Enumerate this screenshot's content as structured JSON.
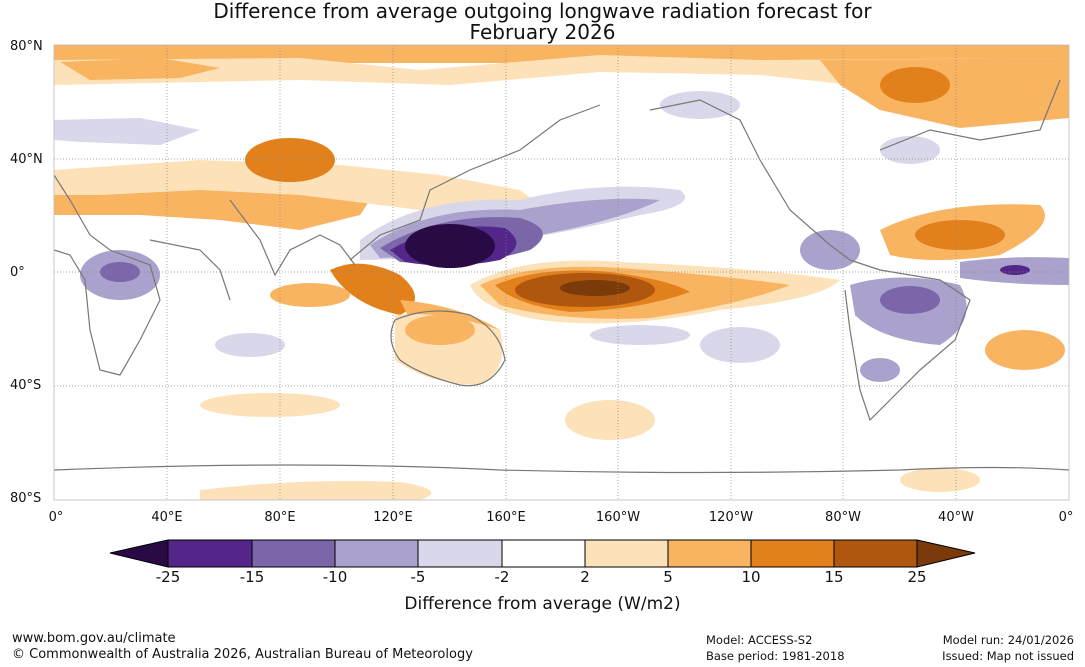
{
  "title": {
    "line1": "Difference from average outgoing longwave radiation forecast for",
    "line2": "February 2026"
  },
  "axes": {
    "lat_labels": [
      "80°N",
      "40°N",
      "0°",
      "40°S",
      "80°S"
    ],
    "lon_labels": [
      "0°",
      "40°E",
      "80°E",
      "120°E",
      "160°E",
      "160°W",
      "120°W",
      "80°W",
      "40°W",
      "0°"
    ]
  },
  "colorbar": {
    "title": "Difference from average (W/m2)",
    "ticks": [
      "-25",
      "-15",
      "-10",
      "-5",
      "-2",
      "2",
      "5",
      "10",
      "15",
      "25"
    ],
    "colors": [
      "#2a0a45",
      "#54268a",
      "#7a66a8",
      "#aaa1cc",
      "#d8d8ea",
      "#ffffff",
      "#fde1b8",
      "#f9b461",
      "#e2811b",
      "#b0570f",
      "#7a3a0a"
    ]
  },
  "footer": {
    "left1": "www.bom.gov.au/climate",
    "left2": "© Commonwealth of Australia 2026, Australian Bureau of Meteorology",
    "model": "Model: ACCESS-S2",
    "base": "Base period: 1981-2018",
    "run": "Model run: 24/01/2026",
    "issued": "Issued: Map not issued"
  }
}
